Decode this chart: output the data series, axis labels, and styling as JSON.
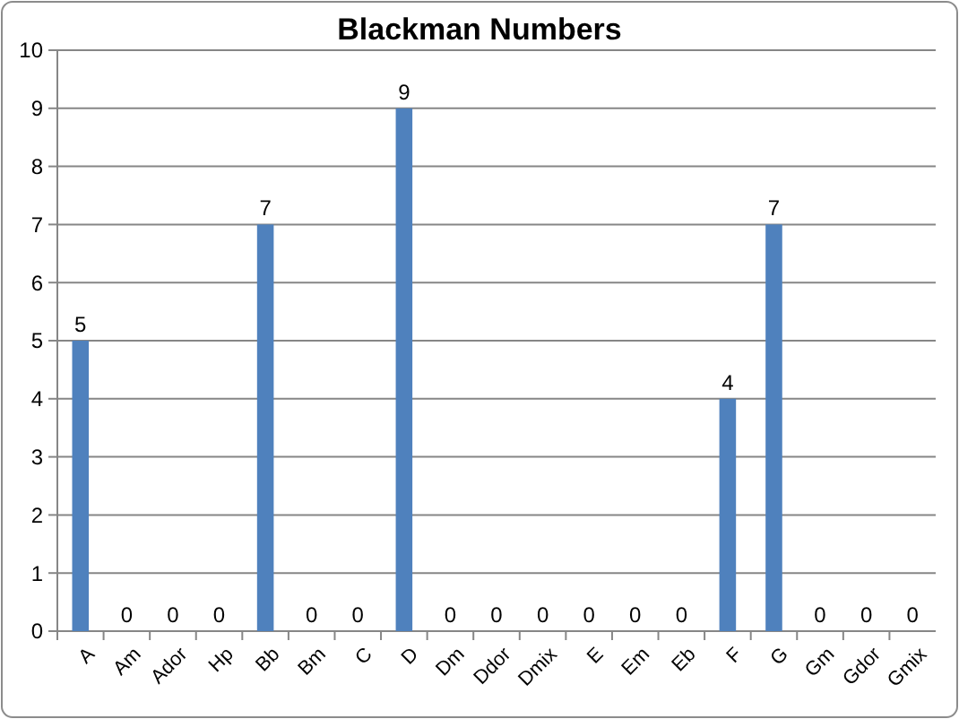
{
  "chart_data": {
    "type": "bar",
    "title": "Blackman Numbers",
    "categories": [
      "A",
      "Am",
      "Ador",
      "Hp",
      "Bb",
      "Bm",
      "C",
      "D",
      "Dm",
      "Ddor",
      "Dmix",
      "E",
      "Em",
      "Eb",
      "F",
      "G",
      "Gm",
      "Gdor",
      "Gmix"
    ],
    "values": [
      5,
      0,
      0,
      0,
      7,
      0,
      0,
      9,
      0,
      0,
      0,
      0,
      0,
      0,
      4,
      7,
      0,
      0,
      0
    ],
    "color": "#4f81bd",
    "ylim": [
      0,
      10
    ],
    "yticks": [
      0,
      1,
      2,
      3,
      4,
      5,
      6,
      7,
      8,
      9,
      10
    ],
    "grid": "y",
    "data_labels": true
  }
}
